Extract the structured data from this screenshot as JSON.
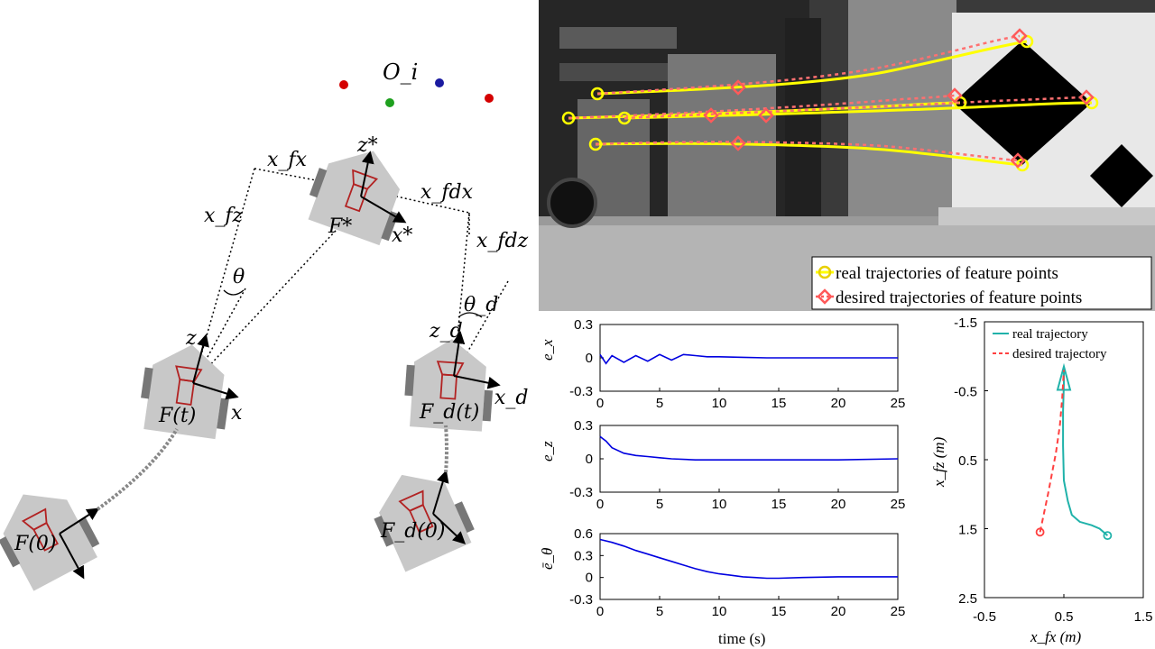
{
  "diagram": {
    "origin_label": "O_i",
    "labels": {
      "xfx": "x_fx",
      "xfdx": "x_fdx",
      "xfz": "x_fz",
      "xfdz": "x_fdz",
      "theta": "θ",
      "theta_d": "θ_d",
      "z_star": "z*",
      "x_star": "x*",
      "frame_star": "F*",
      "z": "z",
      "x": "x",
      "frame_t": "F(t)",
      "z_d": "z_d",
      "x_d": "x_d",
      "frame_dt": "F_d(t)",
      "frame_0": "F(0)",
      "frame_d0": "F_d(0)"
    },
    "colors": {
      "robot": "#c8c8c8",
      "camera": "#b22222",
      "wheel": "#777777",
      "point_red": "#d40000",
      "point_green": "#1ea01e",
      "point_blue": "#1a1aa0"
    }
  },
  "photo": {
    "legend": [
      {
        "label": "real trajectories of feature points",
        "color": "#ffff00",
        "marker": "circle"
      },
      {
        "label": "desired trajectories of feature points",
        "color": "#ff5a5a",
        "marker": "diamond"
      }
    ]
  },
  "chart_data": [
    {
      "type": "line",
      "ylabel": "e_x",
      "xlabel": "",
      "xlim": [
        0,
        25
      ],
      "ylim": [
        -0.3,
        0.3
      ],
      "xticks": [
        "0",
        "5",
        "10",
        "15",
        "20",
        "25"
      ],
      "yticks": [
        "0.3",
        "0",
        "-0.3"
      ],
      "color": "#0000e0",
      "series": [
        {
          "x": [
            0,
            0.5,
            1,
            2,
            3,
            4,
            5,
            6,
            7,
            8,
            9,
            10,
            12,
            14,
            16,
            18,
            20,
            22,
            25
          ],
          "y": [
            0.03,
            -0.05,
            0.02,
            -0.04,
            0.02,
            -0.03,
            0.03,
            -0.02,
            0.03,
            0.02,
            0.01,
            0.01,
            0.005,
            0,
            0,
            0,
            0,
            0,
            0
          ]
        }
      ]
    },
    {
      "type": "line",
      "ylabel": "e_z",
      "xlabel": "",
      "xlim": [
        0,
        25
      ],
      "ylim": [
        -0.3,
        0.3
      ],
      "xticks": [
        "0",
        "5",
        "10",
        "15",
        "20",
        "25"
      ],
      "yticks": [
        "0.3",
        "0",
        "-0.3"
      ],
      "color": "#0000e0",
      "series": [
        {
          "x": [
            0,
            0.5,
            1,
            2,
            3,
            4,
            5,
            6,
            8,
            10,
            15,
            20,
            25
          ],
          "y": [
            0.2,
            0.16,
            0.1,
            0.05,
            0.03,
            0.02,
            0.01,
            0.0,
            -0.01,
            -0.01,
            -0.01,
            -0.01,
            0
          ]
        }
      ]
    },
    {
      "type": "line",
      "ylabel": "ē_θ",
      "xlabel": "time (s)",
      "xlim": [
        0,
        25
      ],
      "ylim": [
        -0.3,
        0.6
      ],
      "xticks": [
        "0",
        "5",
        "10",
        "15",
        "20",
        "25"
      ],
      "yticks": [
        "0.6",
        "0.3",
        "0",
        "-0.3"
      ],
      "color": "#0000e0",
      "series": [
        {
          "x": [
            0,
            1,
            2,
            3,
            4,
            5,
            6,
            7,
            8,
            9,
            10,
            11,
            12,
            13,
            14,
            15,
            17,
            20,
            25
          ],
          "y": [
            0.52,
            0.48,
            0.43,
            0.37,
            0.32,
            0.27,
            0.22,
            0.17,
            0.12,
            0.08,
            0.05,
            0.03,
            0.01,
            0.0,
            -0.01,
            -0.01,
            0.0,
            0.01,
            0.01
          ]
        }
      ]
    },
    {
      "type": "line",
      "xlabel": "x_fx (m)",
      "ylabel": "x_fz (m)",
      "xlim": [
        -0.5,
        1.5
      ],
      "ylim": [
        -1.5,
        2.5
      ],
      "y_inverted": true,
      "xticks": [
        "-0.5",
        "0.5",
        "1.5"
      ],
      "yticks": [
        "-1.5",
        "-0.5",
        "0.5",
        "1.5",
        "2.5"
      ],
      "series": [
        {
          "name": "real trajectory",
          "color": "#20b2aa",
          "x": [
            1.05,
            0.95,
            0.85,
            0.7,
            0.6,
            0.55,
            0.5,
            0.49,
            0.49,
            0.5,
            0.5
          ],
          "y": [
            1.6,
            1.5,
            1.45,
            1.4,
            1.3,
            1.1,
            0.8,
            0.3,
            -0.2,
            -0.6,
            -0.8
          ]
        },
        {
          "name": "desired trajectory",
          "color": "#ff4040",
          "x": [
            0.2,
            0.3,
            0.4,
            0.45,
            0.48,
            0.5
          ],
          "y": [
            1.55,
            1.0,
            0.4,
            0.0,
            -0.4,
            -0.8
          ]
        }
      ]
    }
  ]
}
